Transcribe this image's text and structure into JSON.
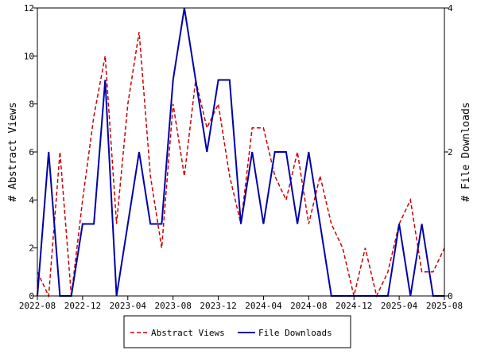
{
  "chart_data": {
    "type": "line",
    "x_tick_labels": [
      "2022-08",
      "2022-12",
      "2023-04",
      "2023-08",
      "2023-12",
      "2024-04",
      "2024-08",
      "2024-12",
      "2025-04",
      "2025-08"
    ],
    "x_start": "2022-08",
    "x_end": "2025-08",
    "y_left": {
      "label": "# Abstract Views",
      "range": [
        0,
        12
      ],
      "ticks": [
        "0",
        "2",
        "4",
        "6",
        "8",
        "10",
        "12"
      ]
    },
    "y_right": {
      "label": "# File Downloads",
      "range": [
        0,
        4
      ],
      "ticks": [
        "0",
        "2",
        "4"
      ]
    },
    "grid": false,
    "legend_placement": "bottom-center",
    "series": [
      {
        "name": "Abstract Views",
        "axis": "left",
        "color": "#cc0000",
        "style": "dashed",
        "points": [
          [
            "2022-08",
            1
          ],
          [
            "2022-09",
            0
          ],
          [
            "2022-10",
            6
          ],
          [
            "2022-11",
            0
          ],
          [
            "2022-12",
            4
          ],
          [
            "2023-01",
            7.5
          ],
          [
            "2023-02",
            10
          ],
          [
            "2023-03",
            3
          ],
          [
            "2023-04",
            8
          ],
          [
            "2023-05",
            11
          ],
          [
            "2023-06",
            5
          ],
          [
            "2023-07",
            2
          ],
          [
            "2023-08",
            8
          ],
          [
            "2023-09",
            5
          ],
          [
            "2023-10",
            9
          ],
          [
            "2023-11",
            7
          ],
          [
            "2023-12",
            8
          ],
          [
            "2024-01",
            5
          ],
          [
            "2024-02",
            3
          ],
          [
            "2024-03",
            7
          ],
          [
            "2024-04",
            7
          ],
          [
            "2024-05",
            5
          ],
          [
            "2024-06",
            4
          ],
          [
            "2024-07",
            6
          ],
          [
            "2024-08",
            3
          ],
          [
            "2024-09",
            5
          ],
          [
            "2024-10",
            3
          ],
          [
            "2024-11",
            2
          ],
          [
            "2024-12",
            0
          ],
          [
            "2025-01",
            2
          ],
          [
            "2025-02",
            0
          ],
          [
            "2025-03",
            1
          ],
          [
            "2025-04",
            3
          ],
          [
            "2025-05",
            4
          ],
          [
            "2025-06",
            1
          ],
          [
            "2025-07",
            1
          ],
          [
            "2025-08",
            2
          ]
        ]
      },
      {
        "name": "File Downloads",
        "axis": "right",
        "color": "#0000aa",
        "style": "solid",
        "points": [
          [
            "2022-08",
            0
          ],
          [
            "2022-09",
            2
          ],
          [
            "2022-10",
            0
          ],
          [
            "2022-11",
            0
          ],
          [
            "2022-12",
            1
          ],
          [
            "2023-01",
            1
          ],
          [
            "2023-02",
            3
          ],
          [
            "2023-03",
            0
          ],
          [
            "2023-04",
            1
          ],
          [
            "2023-05",
            2
          ],
          [
            "2023-06",
            1
          ],
          [
            "2023-07",
            1
          ],
          [
            "2023-08",
            3
          ],
          [
            "2023-09",
            4
          ],
          [
            "2023-10",
            3
          ],
          [
            "2023-11",
            2
          ],
          [
            "2023-12",
            3
          ],
          [
            "2024-01",
            3
          ],
          [
            "2024-02",
            1
          ],
          [
            "2024-03",
            2
          ],
          [
            "2024-04",
            1
          ],
          [
            "2024-05",
            2
          ],
          [
            "2024-06",
            2
          ],
          [
            "2024-07",
            1
          ],
          [
            "2024-08",
            2
          ],
          [
            "2024-09",
            1
          ],
          [
            "2024-10",
            0
          ],
          [
            "2024-11",
            0
          ],
          [
            "2024-12",
            0
          ],
          [
            "2025-01",
            0
          ],
          [
            "2025-02",
            0
          ],
          [
            "2025-03",
            0
          ],
          [
            "2025-04",
            1
          ],
          [
            "2025-05",
            0
          ],
          [
            "2025-06",
            1
          ],
          [
            "2025-07",
            0
          ],
          [
            "2025-08",
            0
          ]
        ]
      }
    ]
  }
}
